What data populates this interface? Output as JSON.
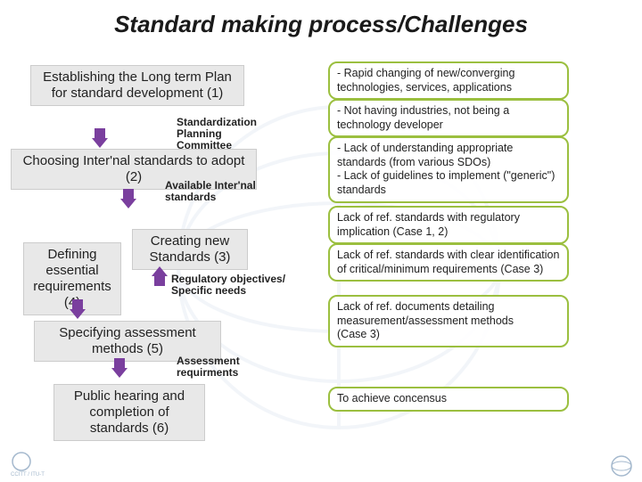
{
  "title": "Standard making process/Challenges",
  "colors": {
    "title": "#1a1a1a",
    "box_bg": "#e8e8e8",
    "box_border": "#cccccc",
    "challenge_border": "#9bbf3f",
    "arrow": "#7a3f9e",
    "bg": "#ffffff"
  },
  "process": {
    "p1": "Establishing the Long term Plan\nfor standard development (1)",
    "p2": "Choosing Inter'nal standards to adopt (2)",
    "p3": "Creating new Standards (3)",
    "p4": "Defining essential requirements (4)",
    "p5": "Specifying assessment methods (5)",
    "p6": "Public hearing and completion of standards (6)"
  },
  "notes": {
    "n1": "Standardization\nPlanning\nCommittee",
    "n2": "Available Inter'nal\nstandards",
    "n3": "Regulatory objectives/\nSpecific needs",
    "n4": "Assessment\nrequirments"
  },
  "challenges": {
    "c1": "- Rapid changing of new/converging technologies, services, applications",
    "c2": "- Not having industries, not being a technology developer",
    "c3": "- Lack of understanding appropriate standards (from various SDOs)\n- Lack of guidelines to implement (\"generic\") standards",
    "c4": "Lack of ref. standards with regulatory implication (Case 1, 2)",
    "c5": "Lack of ref. standards with clear identification of critical/minimum requirements (Case 3)",
    "c6": "Lack of ref. documents detailing measurement/assessment methods\n(Case 3)",
    "c7": "To achieve concensus"
  }
}
